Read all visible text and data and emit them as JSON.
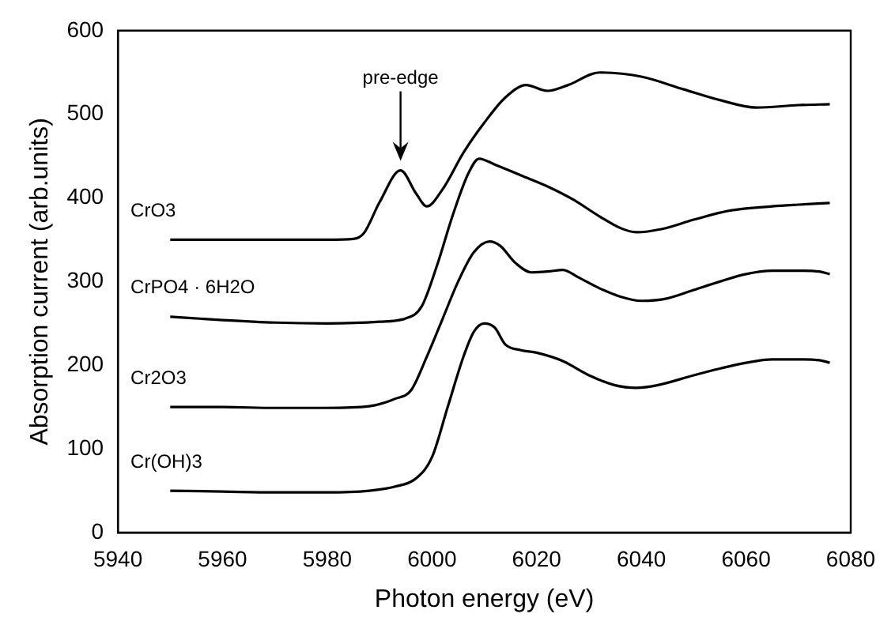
{
  "chart_data": {
    "type": "line",
    "xlabel": "Photon energy (eV)",
    "ylabel": "Absorption current (arb.units)",
    "xlim": [
      5940,
      6080
    ],
    "xticks": [
      5940,
      5960,
      5980,
      6000,
      6020,
      6040,
      6060,
      6080
    ],
    "ylim": [
      0,
      600
    ],
    "yticks": [
      0,
      100,
      200,
      300,
      400,
      500,
      600
    ],
    "grid": false,
    "legend": false,
    "marker": "none",
    "line_style": "solid",
    "annotations": [
      {
        "text": "pre-edge",
        "x": 5994,
        "y": 433
      }
    ],
    "series": [
      {
        "name": "CrO3",
        "color": "#000000",
        "x": [
          5950,
          5960,
          5970,
          5980,
          5985,
          5987,
          5990,
          5994,
          5997,
          5999,
          6002,
          6006,
          6010,
          6014,
          6018,
          6022,
          6026,
          6032,
          6040,
          6048,
          6055,
          6062,
          6070,
          6076
        ],
        "values": [
          350,
          350,
          350,
          350,
          351,
          358,
          395,
          433,
          405,
          390,
          410,
          454,
          490,
          520,
          535,
          528,
          535,
          550,
          545,
          530,
          517,
          508,
          511,
          512
        ]
      },
      {
        "name": "CrPO4 · 6H2O",
        "color": "#000000",
        "x": [
          5950,
          5960,
          5970,
          5980,
          5990,
          5995,
          5998,
          6001,
          6004,
          6007,
          6009,
          6012,
          6017,
          6022,
          6027,
          6032,
          6036,
          6039,
          6044,
          6050,
          6057,
          6065,
          6070,
          6076
        ],
        "values": [
          258,
          254,
          251,
          250,
          252,
          256,
          270,
          320,
          380,
          430,
          447,
          440,
          427,
          414,
          398,
          378,
          364,
          359,
          363,
          374,
          385,
          390,
          392,
          394
        ]
      },
      {
        "name": "Cr2O3",
        "color": "#000000",
        "x": [
          5950,
          5960,
          5970,
          5980,
          5988,
          5993,
          5996,
          5999,
          6002,
          6005,
          6008,
          6011,
          6013,
          6016,
          6019,
          6022,
          6025,
          6028,
          6032,
          6036,
          6040,
          6045,
          6050,
          6055,
          6060,
          6065,
          6070,
          6074,
          6076
        ],
        "values": [
          150,
          150,
          149,
          149,
          151,
          160,
          170,
          210,
          255,
          300,
          335,
          348,
          343,
          322,
          311,
          312,
          314,
          305,
          292,
          282,
          277,
          280,
          290,
          300,
          309,
          313,
          313,
          312,
          309
        ]
      },
      {
        "name": "Cr(OH)3",
        "color": "#000000",
        "x": [
          5950,
          5960,
          5970,
          5980,
          5988,
          5993,
          5997,
          6000,
          6003,
          6006,
          6008,
          6010,
          6012,
          6014,
          6017,
          6020,
          6025,
          6030,
          6035,
          6039,
          6043,
          6050,
          6055,
          6060,
          6065,
          6070,
          6074,
          6076
        ],
        "values": [
          50,
          49,
          48,
          48,
          50,
          55,
          65,
          90,
          150,
          210,
          240,
          250,
          245,
          225,
          218,
          215,
          205,
          188,
          176,
          173,
          176,
          188,
          196,
          203,
          207,
          207,
          206,
          203
        ]
      }
    ]
  }
}
